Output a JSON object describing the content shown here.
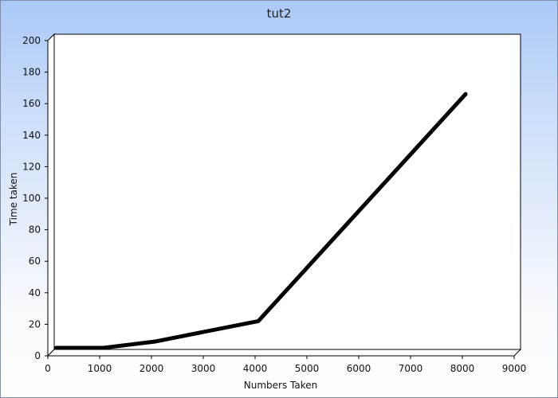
{
  "chart_data": {
    "type": "line",
    "title": "tut2",
    "xlabel": "Numbers Taken",
    "ylabel": "Time taken",
    "xlim": [
      0,
      9000
    ],
    "ylim": [
      0,
      200
    ],
    "x_ticks": [
      0,
      1000,
      2000,
      3000,
      4000,
      5000,
      6000,
      7000,
      8000,
      9000
    ],
    "y_ticks": [
      0,
      20,
      40,
      60,
      80,
      100,
      120,
      140,
      160,
      180,
      200
    ],
    "grid": false,
    "legend": "none",
    "series": [
      {
        "x": [
          100,
          1000,
          2000,
          4000,
          8000
        ],
        "y": [
          3,
          3,
          7,
          20,
          164
        ],
        "color": "#000000"
      }
    ]
  }
}
